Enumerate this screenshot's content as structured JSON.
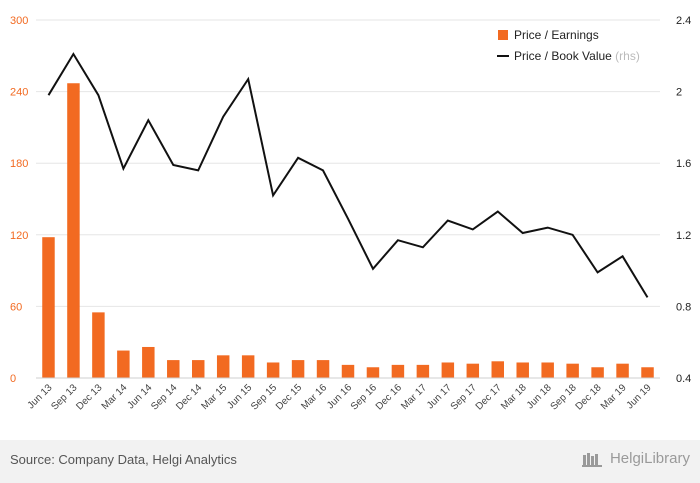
{
  "chart_data": {
    "type": "bar+line",
    "categories": [
      "Jun 13",
      "Sep 13",
      "Dec 13",
      "Mar 14",
      "Jun 14",
      "Sep 14",
      "Dec 14",
      "Mar 15",
      "Jun 15",
      "Sep 15",
      "Dec 15",
      "Mar 16",
      "Jun 16",
      "Sep 16",
      "Dec 16",
      "Mar 17",
      "Jun 17",
      "Sep 17",
      "Dec 17",
      "Mar 18",
      "Jun 18",
      "Sep 18",
      "Dec 18",
      "Mar 19",
      "Jun 19"
    ],
    "series": [
      {
        "name": "Price / Earnings",
        "type": "bar",
        "axis": "left",
        "color": "#f26a21",
        "values": [
          118,
          247,
          55,
          23,
          26,
          15,
          15,
          19,
          19,
          13,
          15,
          15,
          11,
          9,
          11,
          11,
          13,
          12,
          14,
          13,
          13,
          12,
          9,
          12,
          9
        ]
      },
      {
        "name": "Price / Book Value",
        "name_suffix": "(rhs)",
        "type": "line",
        "axis": "right",
        "color": "#111111",
        "values": [
          1.98,
          2.21,
          1.98,
          1.57,
          1.84,
          1.59,
          1.56,
          1.86,
          2.07,
          1.42,
          1.63,
          1.56,
          1.29,
          1.01,
          1.17,
          1.13,
          1.28,
          1.23,
          1.33,
          1.21,
          1.24,
          1.2,
          0.99,
          1.08,
          0.85
        ]
      }
    ],
    "y_left": {
      "min": 0,
      "max": 300,
      "ticks": [
        0,
        60,
        120,
        180,
        240,
        300
      ]
    },
    "y_right": {
      "min": 0.4,
      "max": 2.4,
      "ticks": [
        "0.4",
        "0.8",
        "1.2",
        "1.6",
        "2",
        "2.4"
      ]
    },
    "grid": true,
    "legend_position": "top-right"
  },
  "footer": {
    "source": "Source: Company Data, Helgi Analytics",
    "brand": "HelgiLibrary"
  }
}
